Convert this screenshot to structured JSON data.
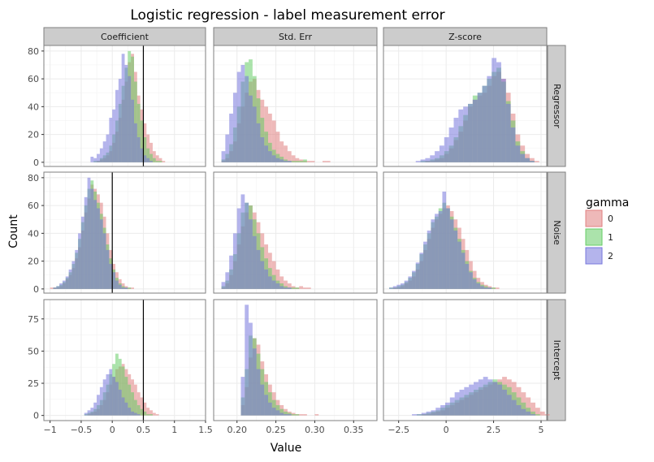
{
  "chart_data": {
    "type": "histogram-facet-grid",
    "title": "Logistic regression - label measurement error",
    "xlabel": "Value",
    "ylabel": "Count",
    "legend": {
      "title": "gamma",
      "placement": "right",
      "entries": [
        "0",
        "1",
        "2"
      ]
    },
    "colors": {
      "0": "#e08080",
      "1": "#66cc66",
      "2": "#7777dd",
      "overlap_note": "fill alpha 0.5",
      "strip_bg": "#cccccc",
      "panel_border": "#7f7f7f",
      "grid": "#ebebeb",
      "ref_line": "#000000"
    },
    "grid": true,
    "columns": [
      {
        "label": "Coefficient",
        "xlim": [
          -1.1,
          1.5
        ],
        "ticks": [
          -1,
          -0.5,
          0,
          0.5,
          1,
          1.5
        ],
        "tick_labels": [
          "−1",
          "−0.5",
          "0",
          "0.5",
          "1",
          "1.5"
        ]
      },
      {
        "label": "Std. Err",
        "xlim": [
          0.17,
          0.38
        ],
        "ticks": [
          0.2,
          0.25,
          0.3,
          0.35
        ],
        "tick_labels": [
          "0.20",
          "0.25",
          "0.30",
          "0.35"
        ]
      },
      {
        "label": "Z-score",
        "xlim": [
          -3.3,
          5.3
        ],
        "ticks": [
          -2.5,
          0,
          2.5,
          5
        ],
        "tick_labels": [
          "−2.5",
          "0",
          "2.5",
          "5"
        ]
      }
    ],
    "rows": [
      {
        "label": "Regressor",
        "ylim": [
          -3,
          84
        ],
        "ticks": [
          0,
          20,
          40,
          60,
          80
        ],
        "tick_labels": [
          "0",
          "20",
          "40",
          "60",
          "80"
        ],
        "ref_line_x": 0.5
      },
      {
        "label": "Noise",
        "ylim": [
          -3,
          84
        ],
        "ticks": [
          0,
          20,
          40,
          60,
          80
        ],
        "tick_labels": [
          "0",
          "20",
          "40",
          "60",
          "80"
        ],
        "ref_line_x": 0
      },
      {
        "label": "Intercept",
        "ylim": [
          -4,
          90
        ],
        "ticks": [
          0,
          25,
          50,
          75
        ],
        "tick_labels": [
          "0",
          "25",
          "50",
          "75"
        ],
        "ref_line_x": 0.5
      }
    ],
    "panels": [
      {
        "row": 0,
        "col": 0,
        "bin_start": -0.35,
        "bin_width": 0.05,
        "series": [
          {
            "gamma": "0",
            "counts": [
              0,
              0,
              1,
              2,
              3,
              5,
              8,
              14,
              22,
              32,
              45,
              58,
              72,
              78,
              65,
              48,
              38,
              28,
              20,
              14,
              8,
              5,
              3,
              1
            ]
          },
          {
            "gamma": "1",
            "counts": [
              0,
              1,
              1,
              3,
              5,
              7,
              12,
              20,
              30,
              42,
              55,
              68,
              80,
              76,
              58,
              42,
              30,
              18,
              10,
              6,
              3,
              1,
              1,
              0
            ]
          },
          {
            "gamma": "2",
            "counts": [
              4,
              3,
              6,
              10,
              15,
              20,
              32,
              38,
              52,
              60,
              78,
              70,
              62,
              45,
              28,
              18,
              10,
              5,
              3,
              1,
              0,
              0,
              0,
              0
            ]
          }
        ]
      },
      {
        "row": 0,
        "col": 1,
        "bin_start": 0.18,
        "bin_width": 0.005,
        "series": [
          {
            "gamma": "0",
            "counts": [
              1,
              3,
              8,
              15,
              28,
              40,
              50,
              58,
              60,
              52,
              45,
              40,
              35,
              30,
              22,
              15,
              12,
              8,
              5,
              3,
              2,
              1,
              1,
              1,
              0,
              0,
              1,
              1
            ]
          },
          {
            "gamma": "1",
            "counts": [
              2,
              6,
              13,
              25,
              40,
              58,
              72,
              74,
              62,
              46,
              32,
              22,
              14,
              9,
              6,
              4,
              2,
              1,
              1,
              1,
              1,
              2,
              0,
              0,
              0,
              0,
              0,
              0
            ]
          },
          {
            "gamma": "2",
            "counts": [
              8,
              20,
              35,
              50,
              65,
              70,
              62,
              48,
              40,
              28,
              18,
              12,
              8,
              5,
              3,
              2,
              1,
              1,
              0,
              0,
              0,
              0,
              0,
              0,
              0,
              0,
              0,
              0
            ]
          }
        ]
      },
      {
        "row": 0,
        "col": 2,
        "bin_start": -1.6,
        "bin_width": 0.25,
        "series": [
          {
            "gamma": "0",
            "counts": [
              0,
              0,
              1,
              1,
              2,
              3,
              6,
              10,
              16,
              22,
              30,
              40,
              45,
              48,
              50,
              55,
              62,
              65,
              60,
              50,
              35,
              20,
              12,
              6,
              3,
              1,
              0
            ]
          },
          {
            "gamma": "1",
            "counts": [
              0,
              1,
              1,
              2,
              3,
              5,
              8,
              12,
              18,
              26,
              34,
              42,
              48,
              50,
              55,
              60,
              65,
              68,
              58,
              44,
              30,
              15,
              8,
              3,
              1,
              0,
              0
            ]
          },
          {
            "gamma": "2",
            "counts": [
              1,
              2,
              3,
              5,
              8,
              12,
              18,
              25,
              32,
              38,
              40,
              42,
              45,
              50,
              55,
              62,
              75,
              72,
              60,
              42,
              25,
              12,
              6,
              3,
              1,
              0,
              0
            ]
          }
        ]
      },
      {
        "row": 1,
        "col": 0,
        "bin_start": -1.0,
        "bin_width": 0.05,
        "series": [
          {
            "gamma": "0",
            "counts": [
              1,
              1,
              1,
              2,
              4,
              7,
              10,
              15,
              22,
              30,
              42,
              55,
              65,
              75,
              72,
              68,
              62,
              52,
              40,
              28,
              18,
              12,
              7,
              4,
              2,
              1,
              1
            ]
          },
          {
            "gamma": "1",
            "counts": [
              0,
              1,
              2,
              3,
              5,
              8,
              12,
              18,
              26,
              36,
              48,
              60,
              72,
              78,
              70,
              62,
              54,
              44,
              32,
              22,
              14,
              8,
              4,
              2,
              1,
              1,
              0
            ]
          },
          {
            "gamma": "2",
            "counts": [
              0,
              1,
              2,
              4,
              6,
              9,
              14,
              20,
              28,
              40,
              52,
              66,
              80,
              72,
              64,
              58,
              50,
              40,
              28,
              18,
              12,
              6,
              3,
              1,
              1,
              0,
              0
            ]
          }
        ]
      },
      {
        "row": 1,
        "col": 1,
        "bin_start": 0.18,
        "bin_width": 0.005,
        "series": [
          {
            "gamma": "0",
            "counts": [
              1,
              4,
              10,
              20,
              32,
              45,
              55,
              60,
              55,
              48,
              40,
              32,
              26,
              20,
              14,
              9,
              6,
              4,
              2,
              1,
              2,
              1,
              1,
              0,
              0
            ]
          },
          {
            "gamma": "1",
            "counts": [
              2,
              6,
              14,
              25,
              40,
              55,
              62,
              60,
              50,
              40,
              30,
              22,
              15,
              10,
              6,
              4,
              2,
              1,
              1,
              1,
              0,
              0,
              0,
              0,
              0
            ]
          },
          {
            "gamma": "2",
            "counts": [
              5,
              12,
              24,
              40,
              58,
              68,
              62,
              50,
              38,
              28,
              20,
              14,
              9,
              6,
              4,
              2,
              1,
              1,
              0,
              0,
              0,
              0,
              0,
              0,
              0
            ]
          }
        ]
      },
      {
        "row": 1,
        "col": 2,
        "bin_start": -3.0,
        "bin_width": 0.2,
        "series": [
          {
            "gamma": "0",
            "counts": [
              0,
              1,
              1,
              2,
              4,
              6,
              9,
              14,
              20,
              28,
              36,
              44,
              50,
              54,
              58,
              60,
              56,
              50,
              44,
              36,
              28,
              20,
              13,
              8,
              5,
              3,
              2,
              1,
              1,
              0
            ]
          },
          {
            "gamma": "1",
            "counts": [
              1,
              1,
              2,
              3,
              5,
              8,
              12,
              18,
              25,
              32,
              40,
              48,
              52,
              58,
              62,
              58,
              52,
              44,
              36,
              28,
              20,
              13,
              8,
              5,
              3,
              2,
              1,
              1,
              0,
              0
            ]
          },
          {
            "gamma": "2",
            "counts": [
              1,
              2,
              3,
              4,
              6,
              9,
              13,
              19,
              26,
              34,
              42,
              50,
              54,
              56,
              70,
              58,
              50,
              42,
              34,
              26,
              18,
              12,
              7,
              4,
              2,
              1,
              1,
              0,
              0,
              0
            ]
          }
        ]
      },
      {
        "row": 2,
        "col": 0,
        "bin_start": -0.45,
        "bin_width": 0.05,
        "series": [
          {
            "gamma": "0",
            "counts": [
              0,
              1,
              2,
              3,
              5,
              8,
              12,
              18,
              24,
              30,
              36,
              38,
              40,
              36,
              32,
              28,
              24,
              18,
              14,
              10,
              6,
              4,
              2,
              1,
              0
            ]
          },
          {
            "gamma": "1",
            "counts": [
              1,
              2,
              3,
              5,
              8,
              12,
              18,
              24,
              32,
              40,
              48,
              44,
              38,
              30,
              24,
              18,
              12,
              8,
              5,
              3,
              1,
              1,
              0,
              0,
              0
            ]
          },
          {
            "gamma": "2",
            "counts": [
              2,
              4,
              6,
              10,
              16,
              22,
              28,
              32,
              36,
              30,
              26,
              20,
              14,
              10,
              6,
              3,
              2,
              1,
              0,
              0,
              0,
              0,
              0,
              0,
              0
            ]
          }
        ]
      },
      {
        "row": 2,
        "col": 1,
        "bin_start": 0.205,
        "bin_width": 0.005,
        "series": [
          {
            "gamma": "0",
            "counts": [
              8,
              22,
              45,
              60,
              55,
              42,
              32,
              24,
              18,
              12,
              8,
              5,
              3,
              2,
              1,
              1,
              1,
              0,
              0,
              1
            ]
          },
          {
            "gamma": "1",
            "counts": [
              14,
              36,
              62,
              60,
              48,
              36,
              26,
              18,
              12,
              8,
              5,
              3,
              2,
              1,
              1,
              0,
              0,
              0,
              0,
              0
            ]
          },
          {
            "gamma": "2",
            "counts": [
              30,
              86,
              72,
              52,
              36,
              24,
              16,
              10,
              6,
              4,
              2,
              1,
              1,
              0,
              0,
              0,
              0,
              0,
              0,
              0
            ]
          }
        ]
      },
      {
        "row": 2,
        "col": 2,
        "bin_start": -1.8,
        "bin_width": 0.25,
        "series": [
          {
            "gamma": "0",
            "counts": [
              0,
              0,
              1,
              1,
              2,
              3,
              4,
              6,
              8,
              10,
              12,
              14,
              16,
              18,
              20,
              22,
              24,
              26,
              28,
              30,
              28,
              26,
              22,
              18,
              14,
              10,
              6,
              3,
              1
            ]
          },
          {
            "gamma": "1",
            "counts": [
              0,
              1,
              1,
              2,
              3,
              4,
              6,
              8,
              10,
              12,
              14,
              16,
              18,
              20,
              22,
              24,
              26,
              28,
              26,
              24,
              22,
              18,
              14,
              10,
              6,
              3,
              1,
              0,
              0
            ]
          },
          {
            "gamma": "2",
            "counts": [
              1,
              1,
              2,
              3,
              4,
              6,
              8,
              10,
              14,
              18,
              20,
              22,
              24,
              26,
              28,
              30,
              28,
              26,
              24,
              20,
              16,
              12,
              8,
              5,
              3,
              1,
              0,
              0,
              0
            ]
          }
        ]
      }
    ]
  }
}
